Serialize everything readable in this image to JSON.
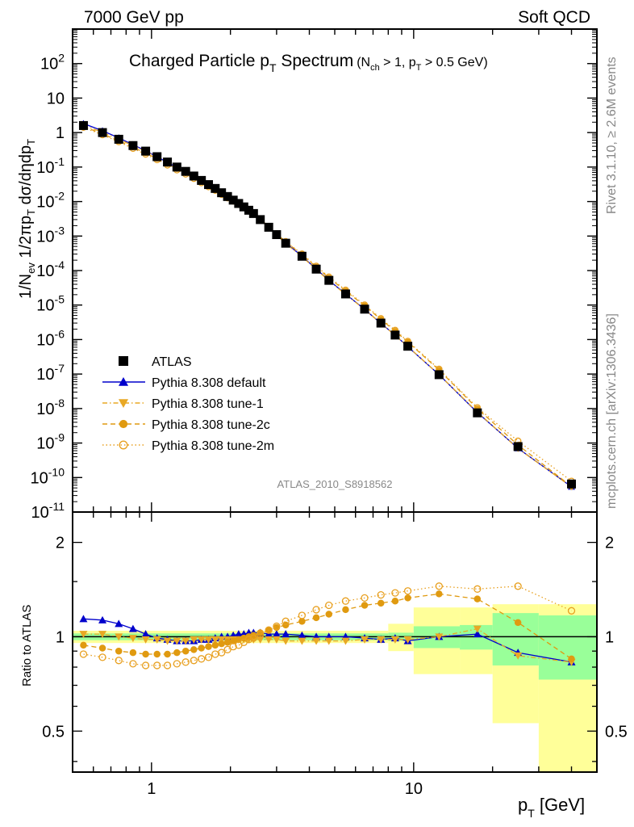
{
  "header": {
    "left": "7000 GeV pp",
    "right": "Soft QCD"
  },
  "side": {
    "rivet": "Rivet 3.1.10, ≥ 2.6M events",
    "mcplots": "mcplots.cern.ch [arXiv:1306.3436]"
  },
  "plot_title": {
    "main": "Charged Particle p",
    "main_sub": "T",
    "main_tail": " Spectrum",
    "cut_a": "(N",
    "cut_a_sub": "ch",
    "cut_b": " > 1, p",
    "cut_b_sub": "T",
    "cut_c": " > 0.5 GeV)"
  },
  "analysis_id": "ATLAS_2010_S8918562",
  "axes": {
    "ylabel_main": "1/N_ev 1/2πp_T dσ/dηdp_T",
    "ylabel_ratio": "Ratio to ATLAS",
    "xlabel": "p_T  [GeV]",
    "xtick_labels": [
      "1",
      "10"
    ],
    "ytick_main_labels": [
      "10^2",
      "10",
      "1",
      "10^-1",
      "10^-2",
      "10^-3",
      "10^-4",
      "10^-5",
      "10^-6",
      "10^-7",
      "10^-8",
      "10^-9",
      "10^-10",
      "10^-11"
    ],
    "ytick_ratio_labels": [
      "2",
      "1",
      "0.5"
    ]
  },
  "legend": [
    {
      "label": "ATLAS",
      "color": "#000000",
      "marker": "square",
      "line": "none"
    },
    {
      "label": "Pythia 8.308 default",
      "color": "#0000cc",
      "marker": "triangle-up",
      "line": "solid"
    },
    {
      "label": "Pythia 8.308 tune-1",
      "color": "#e8a825",
      "marker": "triangle-down",
      "line": "dashdot"
    },
    {
      "label": "Pythia 8.308 tune-2c",
      "color": "#e09a10",
      "marker": "circle-filled",
      "line": "dashed"
    },
    {
      "label": "Pythia 8.308 tune-2m",
      "color": "#e8a020",
      "marker": "circle-open",
      "line": "dotted"
    }
  ],
  "chart_data": {
    "type": "scatter",
    "xscale": "log",
    "xlim": [
      0.5,
      50
    ],
    "main_panel": {
      "yscale": "log",
      "ylim": [
        1e-11,
        1000
      ],
      "x": [
        0.55,
        0.65,
        0.75,
        0.85,
        0.95,
        1.05,
        1.15,
        1.25,
        1.35,
        1.45,
        1.55,
        1.65,
        1.75,
        1.85,
        1.95,
        2.05,
        2.15,
        2.25,
        2.35,
        2.45,
        2.6,
        2.8,
        3.0,
        3.25,
        3.75,
        4.25,
        4.75,
        5.5,
        6.5,
        7.5,
        8.5,
        9.5,
        12.5,
        17.5,
        25,
        40
      ],
      "series": [
        {
          "name": "ATLAS",
          "values": [
            1.6,
            1.0,
            0.64,
            0.42,
            0.29,
            0.2,
            0.14,
            0.1,
            0.075,
            0.055,
            0.041,
            0.031,
            0.024,
            0.018,
            0.014,
            0.011,
            0.0088,
            0.007,
            0.0056,
            0.0045,
            0.003,
            0.0018,
            0.0011,
            0.00062,
            0.00026,
            0.00011,
            5.2e-05,
            2.1e-05,
            7.6e-06,
            3e-06,
            1.35e-06,
            6.4e-07,
            9.6e-08,
            7.5e-09,
            7.9e-10,
            6.5e-11
          ]
        }
      ]
    },
    "ratio_panel": {
      "ylabel": "Ratio to ATLAS",
      "yscale": "log",
      "ylim": [
        0.37,
        2.5
      ],
      "reference_line": 1.0,
      "x": [
        0.55,
        0.65,
        0.75,
        0.85,
        0.95,
        1.05,
        1.15,
        1.25,
        1.35,
        1.45,
        1.55,
        1.65,
        1.75,
        1.85,
        1.95,
        2.05,
        2.15,
        2.25,
        2.35,
        2.45,
        2.6,
        2.8,
        3.0,
        3.25,
        3.75,
        4.25,
        4.75,
        5.5,
        6.5,
        7.5,
        8.5,
        9.5,
        12.5,
        17.5,
        25,
        40
      ],
      "series": [
        {
          "name": "Pythia 8.308 default",
          "values": [
            1.14,
            1.13,
            1.1,
            1.06,
            1.02,
            0.99,
            0.98,
            0.97,
            0.97,
            0.97,
            0.98,
            0.98,
            0.99,
            1.0,
            1.0,
            1.01,
            1.02,
            1.02,
            1.03,
            1.03,
            1.03,
            1.02,
            1.02,
            1.02,
            1.01,
            1.0,
            1.0,
            1.0,
            0.99,
            0.98,
            0.99,
            0.97,
            1.0,
            1.02,
            0.89,
            0.83
          ]
        },
        {
          "name": "Pythia 8.308 tune-1",
          "values": [
            1.02,
            1.02,
            1.0,
            0.99,
            0.98,
            0.98,
            0.97,
            0.97,
            0.97,
            0.98,
            0.98,
            0.98,
            0.98,
            0.98,
            0.98,
            0.98,
            0.98,
            0.98,
            0.98,
            0.98,
            0.98,
            0.98,
            0.98,
            0.97,
            0.97,
            0.97,
            0.97,
            0.97,
            0.98,
            0.98,
            0.98,
            0.98,
            1.0,
            1.06,
            0.87,
            0.83
          ]
        },
        {
          "name": "Pythia 8.308 tune-2c",
          "values": [
            0.94,
            0.92,
            0.9,
            0.89,
            0.88,
            0.88,
            0.88,
            0.89,
            0.9,
            0.91,
            0.92,
            0.93,
            0.94,
            0.95,
            0.96,
            0.97,
            0.98,
            0.99,
            1.0,
            1.01,
            1.03,
            1.05,
            1.07,
            1.09,
            1.12,
            1.15,
            1.18,
            1.22,
            1.26,
            1.28,
            1.3,
            1.33,
            1.37,
            1.32,
            1.11,
            0.85
          ]
        },
        {
          "name": "Pythia 8.308 tune-2m",
          "values": [
            0.88,
            0.86,
            0.84,
            0.82,
            0.81,
            0.81,
            0.81,
            0.82,
            0.83,
            0.84,
            0.85,
            0.86,
            0.88,
            0.89,
            0.91,
            0.93,
            0.94,
            0.96,
            0.98,
            0.99,
            1.02,
            1.05,
            1.08,
            1.12,
            1.17,
            1.22,
            1.26,
            1.3,
            1.33,
            1.36,
            1.38,
            1.4,
            1.45,
            1.42,
            1.45,
            1.21
          ]
        }
      ],
      "uncertainty_bands": [
        {
          "x_lo": 0.5,
          "x_hi": 8.0,
          "stat_lo": 0.975,
          "stat_hi": 1.025,
          "tot_lo": 0.955,
          "tot_hi": 1.045
        },
        {
          "x_lo": 8.0,
          "x_hi": 10.0,
          "stat_lo": 0.97,
          "stat_hi": 1.03,
          "tot_lo": 0.9,
          "tot_hi": 1.1
        },
        {
          "x_lo": 10.0,
          "x_hi": 15.0,
          "stat_lo": 0.92,
          "stat_hi": 1.08,
          "tot_lo": 0.76,
          "tot_hi": 1.24
        },
        {
          "x_lo": 15.0,
          "x_hi": 20.0,
          "stat_lo": 0.91,
          "stat_hi": 1.09,
          "tot_lo": 0.76,
          "tot_hi": 1.24
        },
        {
          "x_lo": 20.0,
          "x_hi": 30.0,
          "stat_lo": 0.81,
          "stat_hi": 1.19,
          "tot_lo": 0.53,
          "tot_hi": 1.27
        },
        {
          "x_lo": 30.0,
          "x_hi": 50.0,
          "stat_lo": 0.73,
          "stat_hi": 1.17,
          "tot_lo": 0.37,
          "tot_hi": 1.27
        }
      ]
    }
  }
}
